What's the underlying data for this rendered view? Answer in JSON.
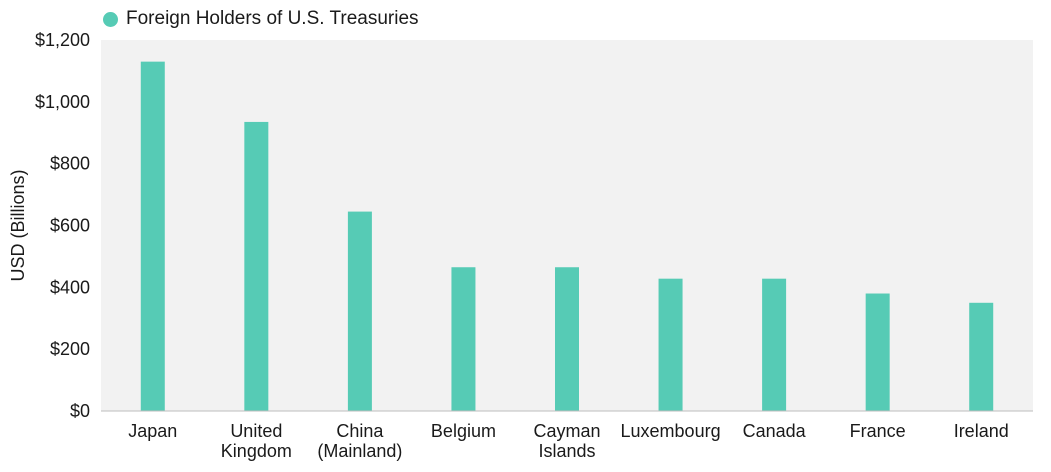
{
  "colors": {
    "series": "#56CBB5",
    "plot_bg": "#F2F2F2"
  },
  "chart_data": {
    "type": "bar",
    "title": "",
    "xlabel": "",
    "ylabel": "USD (Billions)",
    "ylim": [
      0,
      1200
    ],
    "yticks": [
      0,
      200,
      400,
      600,
      800,
      1000,
      1200
    ],
    "ytick_labels": [
      "$0",
      "$200",
      "$400",
      "$600",
      "$800",
      "$1,000",
      "$1,200"
    ],
    "grid": false,
    "legend_position": "top-left",
    "categories": [
      "Japan",
      "United Kingdom",
      "China (Mainland)",
      "Belgium",
      "Cayman Islands",
      "Luxembourg",
      "Canada",
      "France",
      "Ireland"
    ],
    "category_lines": [
      [
        "Japan"
      ],
      [
        "United",
        "Kingdom"
      ],
      [
        "China",
        "(Mainland)"
      ],
      [
        "Belgium"
      ],
      [
        "Cayman",
        "Islands"
      ],
      [
        "Luxembourg"
      ],
      [
        "Canada"
      ],
      [
        "France"
      ],
      [
        "Ireland"
      ]
    ],
    "series": [
      {
        "name": "Foreign Holders of U.S. Treasuries",
        "values": [
          1130,
          935,
          645,
          465,
          465,
          428,
          428,
          380,
          350
        ]
      }
    ]
  }
}
